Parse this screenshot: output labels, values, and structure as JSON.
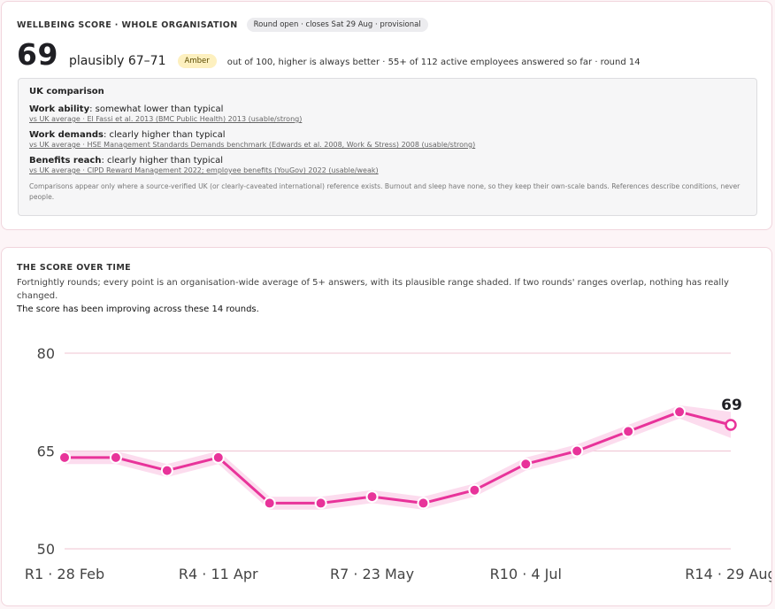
{
  "header": {
    "eyebrow": "WELLBEING SCORE · WHOLE ORGANISATION",
    "status_pill": "Round open · closes Sat 29 Aug · provisional"
  },
  "score": {
    "value": "69",
    "range": "plausibly 67–71",
    "band": "Amber",
    "meta": "out of 100, higher is always better · 55+ of 112 active employees answered so far · round 14"
  },
  "uk": {
    "title": "UK comparison",
    "items": [
      {
        "label": "Work ability",
        "verdict": ": somewhat lower than typical",
        "ref": "vs UK average · El Fassi et al. 2013 (BMC Public Health) 2013 (usable/strong)"
      },
      {
        "label": "Work demands",
        "verdict": ": clearly higher than typical",
        "ref": "vs UK average · HSE Management Standards Demands benchmark (Edwards et al. 2008, Work & Stress) 2008 (usable/strong)"
      },
      {
        "label": "Benefits reach",
        "verdict": ": clearly higher than typical",
        "ref": "vs UK average · CIPD Reward Management 2022; employee benefits (YouGov) 2022 (usable/weak)"
      }
    ],
    "note": "Comparisons appear only where a source-verified UK (or clearly-caveated international) reference exists. Burnout and sleep have none, so they keep their own-scale bands. References describe conditions, never people."
  },
  "over_time": {
    "eyebrow": "THE SCORE OVER TIME",
    "subtitle": "Fortnightly rounds; every point is an organisation-wide average of 5+ answers, with its plausible range shaded. If two rounds' ranges overlap, nothing has really changed.",
    "trend": "The score has been improving across these 14 rounds."
  },
  "colors": {
    "accent": "#e8339a",
    "band": "#fbd3ea",
    "grid": "#efc3d2"
  },
  "chart_data": {
    "type": "line",
    "x": [
      "R1 · 28 Feb",
      "R2",
      "R3",
      "R4 · 11 Apr",
      "R5",
      "R6",
      "R7 · 23 May",
      "R8",
      "R9",
      "R10 · 4 Jul",
      "R11",
      "R12",
      "R13",
      "R14 · 29 Aug"
    ],
    "x_tick_labels": [
      "R1 · 28 Feb",
      "R4 · 11 Apr",
      "R7 · 23 May",
      "R10 · 4 Jul",
      "R14 · 29 Aug"
    ],
    "x_tick_indices": [
      0,
      3,
      6,
      9,
      13
    ],
    "series": [
      {
        "values": [
          64,
          64,
          62,
          64,
          57,
          57,
          58,
          57,
          59,
          63,
          65,
          68,
          71,
          69
        ],
        "lower": [
          63,
          63,
          61,
          63,
          56,
          56,
          57,
          56,
          58,
          62,
          64,
          67,
          70,
          67
        ],
        "upper": [
          65,
          65,
          63,
          65,
          58,
          58,
          59,
          58,
          60,
          64,
          66,
          69,
          72,
          71
        ]
      }
    ],
    "last_point_label": "69",
    "last_point_provisional": true,
    "y_ticks": [
      50,
      65,
      80
    ],
    "ylim": [
      50,
      80
    ],
    "grid": true
  }
}
